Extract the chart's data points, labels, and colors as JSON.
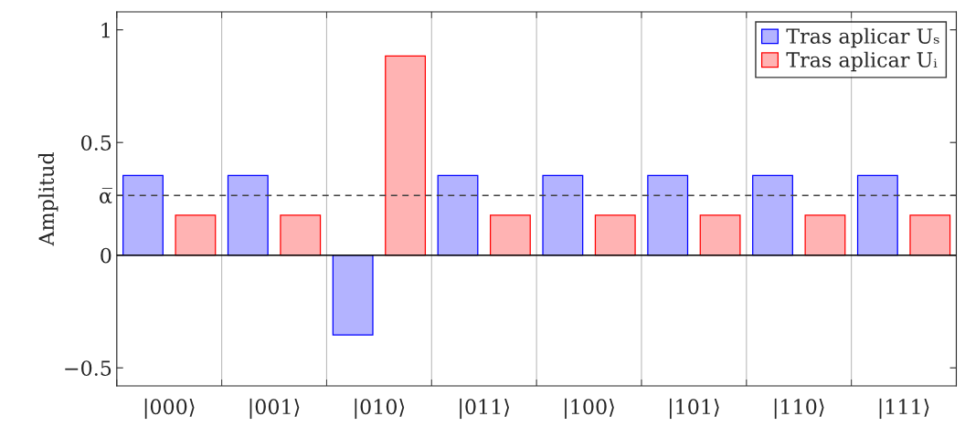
{
  "chart_data": {
    "type": "bar",
    "ylabel": "Amplitud",
    "categories": [
      "|000⟩",
      "|001⟩",
      "|010⟩",
      "|011⟩",
      "|100⟩",
      "|101⟩",
      "|110⟩",
      "|111⟩"
    ],
    "series": [
      {
        "name": "Tras aplicar Uₛ",
        "color": "#b3b3ff",
        "values": [
          0.354,
          0.354,
          -0.354,
          0.354,
          0.354,
          0.354,
          0.354,
          0.354
        ]
      },
      {
        "name": "Tras aplicar Uᵢ",
        "color": "#ffb3b3",
        "values": [
          0.177,
          0.177,
          0.884,
          0.177,
          0.177,
          0.177,
          0.177,
          0.177
        ]
      }
    ],
    "ylim": [
      -0.58,
      1.08
    ],
    "yticks": [
      -0.5,
      0,
      {
        "value": 0.265,
        "label": "α̅"
      },
      0.5,
      1
    ],
    "ref_lines": [
      {
        "axis": "y",
        "value": 0.265,
        "color": "#404040",
        "line_style": "dashed"
      },
      {
        "axis": "y",
        "value": 0,
        "color": "#000000",
        "line_style": "solid"
      }
    ],
    "grid": "x",
    "legend": "top right"
  }
}
